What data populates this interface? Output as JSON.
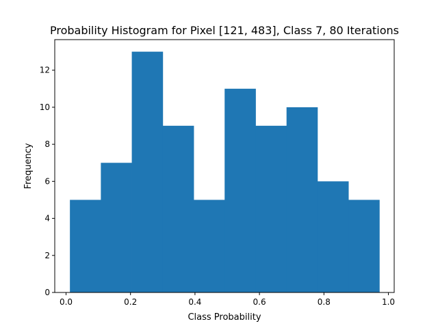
{
  "chart_data": {
    "type": "bar",
    "title": "Probability Histogram for Pixel [121, 483], Class 7, 80 Iterations",
    "xlabel": "Class Probability",
    "ylabel": "Frequency",
    "xlim": [
      -0.035,
      1.018
    ],
    "ylim": [
      0,
      13.65
    ],
    "bins": [
      {
        "start": 0.012,
        "end": 0.108,
        "count": 5
      },
      {
        "start": 0.108,
        "end": 0.204,
        "count": 7
      },
      {
        "start": 0.204,
        "end": 0.3,
        "count": 13
      },
      {
        "start": 0.3,
        "end": 0.396,
        "count": 9
      },
      {
        "start": 0.396,
        "end": 0.492,
        "count": 5
      },
      {
        "start": 0.492,
        "end": 0.588,
        "count": 11
      },
      {
        "start": 0.588,
        "end": 0.684,
        "count": 9
      },
      {
        "start": 0.684,
        "end": 0.78,
        "count": 10
      },
      {
        "start": 0.78,
        "end": 0.876,
        "count": 6
      },
      {
        "start": 0.876,
        "end": 0.972,
        "count": 5
      }
    ],
    "xticks": [
      "0.0",
      "0.2",
      "0.4",
      "0.6",
      "0.8",
      "1.0"
    ],
    "xtick_values": [
      0.0,
      0.2,
      0.4,
      0.6,
      0.8,
      1.0
    ],
    "yticks": [
      "0",
      "2",
      "4",
      "6",
      "8",
      "10",
      "12"
    ],
    "ytick_values": [
      0,
      2,
      4,
      6,
      8,
      10,
      12
    ],
    "bar_color": "#1f77b4",
    "grid": false
  }
}
